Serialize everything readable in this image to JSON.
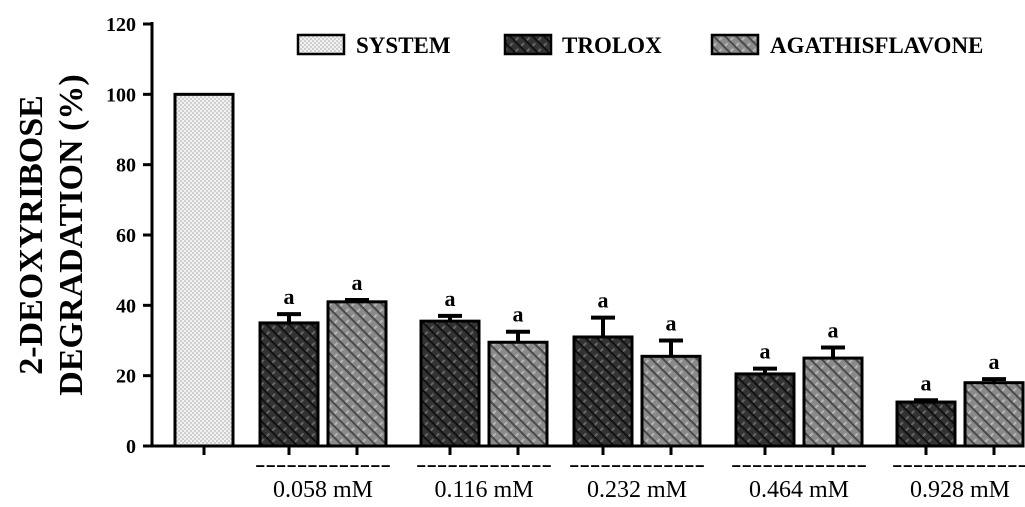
{
  "chart_data": {
    "type": "bar",
    "ylabel_line1": "2-DEOXYRIBOSE",
    "ylabel_line2": "DEGRADATION (%)",
    "ylim": [
      0,
      120
    ],
    "yticks": [
      0,
      20,
      40,
      60,
      80,
      100,
      120
    ],
    "legend_position": "top-right",
    "legend": [
      "SYSTEM",
      "TROLOX",
      "AGATHISFLAVONE"
    ],
    "control": {
      "name": "SYSTEM",
      "value": 100
    },
    "categories": [
      "0.058 mM",
      "0.116 mM",
      "0.232 mM",
      "0.464 mM",
      "0.928 mM"
    ],
    "series": [
      {
        "name": "TROLOX",
        "values": [
          35,
          35.5,
          31,
          20.5,
          12.5
        ],
        "errors": [
          2.5,
          1.5,
          5.5,
          1.5,
          0.5
        ],
        "significance": [
          "a",
          "a",
          "a",
          "a",
          "a"
        ]
      },
      {
        "name": "AGATHISFLAVONE",
        "values": [
          41,
          29.5,
          25.5,
          25,
          18
        ],
        "errors": [
          0.5,
          3,
          4.5,
          3,
          1
        ],
        "significance": [
          "a",
          "a",
          "a",
          "a",
          "a"
        ]
      }
    ],
    "category_separator": "-------------",
    "colors": {
      "system": "#e6e6e6",
      "trolox": "#2a2a2a",
      "agathisflavone": "#7a7a7a",
      "axis": "#000000"
    },
    "grid": false
  }
}
